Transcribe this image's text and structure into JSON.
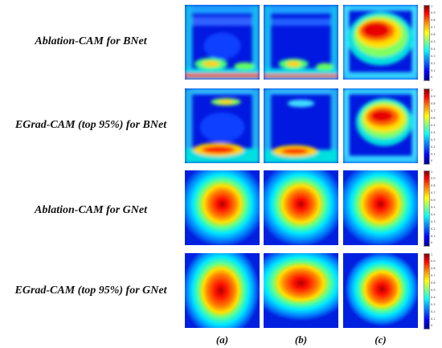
{
  "rows": [
    {
      "label": "Ablation-CAM for BNet"
    },
    {
      "label": "EGrad-CAM (top 95%) for BNet"
    },
    {
      "label": "Ablation-CAM for GNet"
    },
    {
      "label": "EGrad-CAM (top 95%) for GNet"
    }
  ],
  "columns": [
    "(a)",
    "(b)",
    "(c)"
  ],
  "colorbar_ticks": [
    "1",
    "0.9",
    "0.8",
    "0.7",
    "0.6",
    "0.5",
    "0.4",
    "0.3",
    "0.2",
    "0.1",
    "0"
  ]
}
